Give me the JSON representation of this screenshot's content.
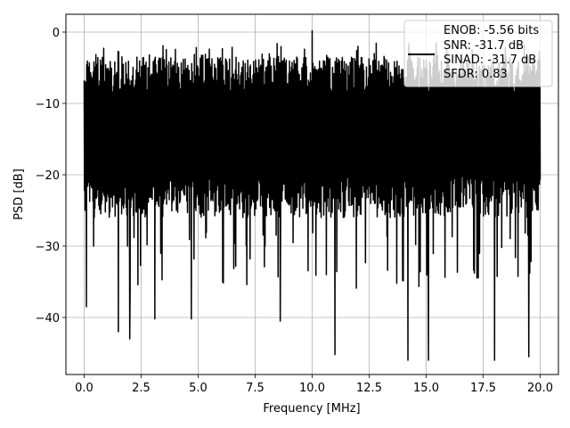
{
  "chart_data": {
    "type": "line",
    "title": "",
    "xlabel": "Frequency [MHz]",
    "ylabel": "PSD [dB]",
    "xlim": [
      -0.8,
      20.8
    ],
    "ylim": [
      -48,
      2.5
    ],
    "xticks": [
      0.0,
      2.5,
      5.0,
      7.5,
      10.0,
      12.5,
      15.0,
      17.5,
      20.0
    ],
    "xtick_labels": [
      "0.0",
      "2.5",
      "5.0",
      "7.5",
      "10.0",
      "12.5",
      "15.0",
      "17.5",
      "20.0"
    ],
    "yticks": [
      0,
      -10,
      -20,
      -30,
      -40
    ],
    "ytick_labels": [
      "0",
      "−10",
      "−20",
      "−30",
      "−40"
    ],
    "grid": true,
    "legend_position": "top-right",
    "series": [
      {
        "name": "",
        "color": "#000000",
        "x_range": [
          0.0,
          20.0
        ],
        "typical_band": [
          -26,
          -3
        ],
        "peaks": [
          {
            "x": 0.1,
            "y": -38.5
          },
          {
            "x": 1.5,
            "y": -42.0
          },
          {
            "x": 2.0,
            "y": -43.0
          },
          {
            "x": 3.1,
            "y": -40.2
          },
          {
            "x": 4.7,
            "y": -40.2
          },
          {
            "x": 8.6,
            "y": -40.5
          },
          {
            "x": 11.0,
            "y": -45.2
          },
          {
            "x": 14.2,
            "y": -46.0
          },
          {
            "x": 15.1,
            "y": -46.0
          },
          {
            "x": 18.0,
            "y": -46.0
          },
          {
            "x": 19.5,
            "y": -45.5
          },
          {
            "x": 10.0,
            "y": 0.2
          }
        ]
      }
    ],
    "legend": {
      "entries": [
        "ENOB: -5.56 bits",
        "SNR: -31.7 dB",
        "SINAD: -31.7 dB",
        "SFDR: 0.83"
      ]
    }
  }
}
